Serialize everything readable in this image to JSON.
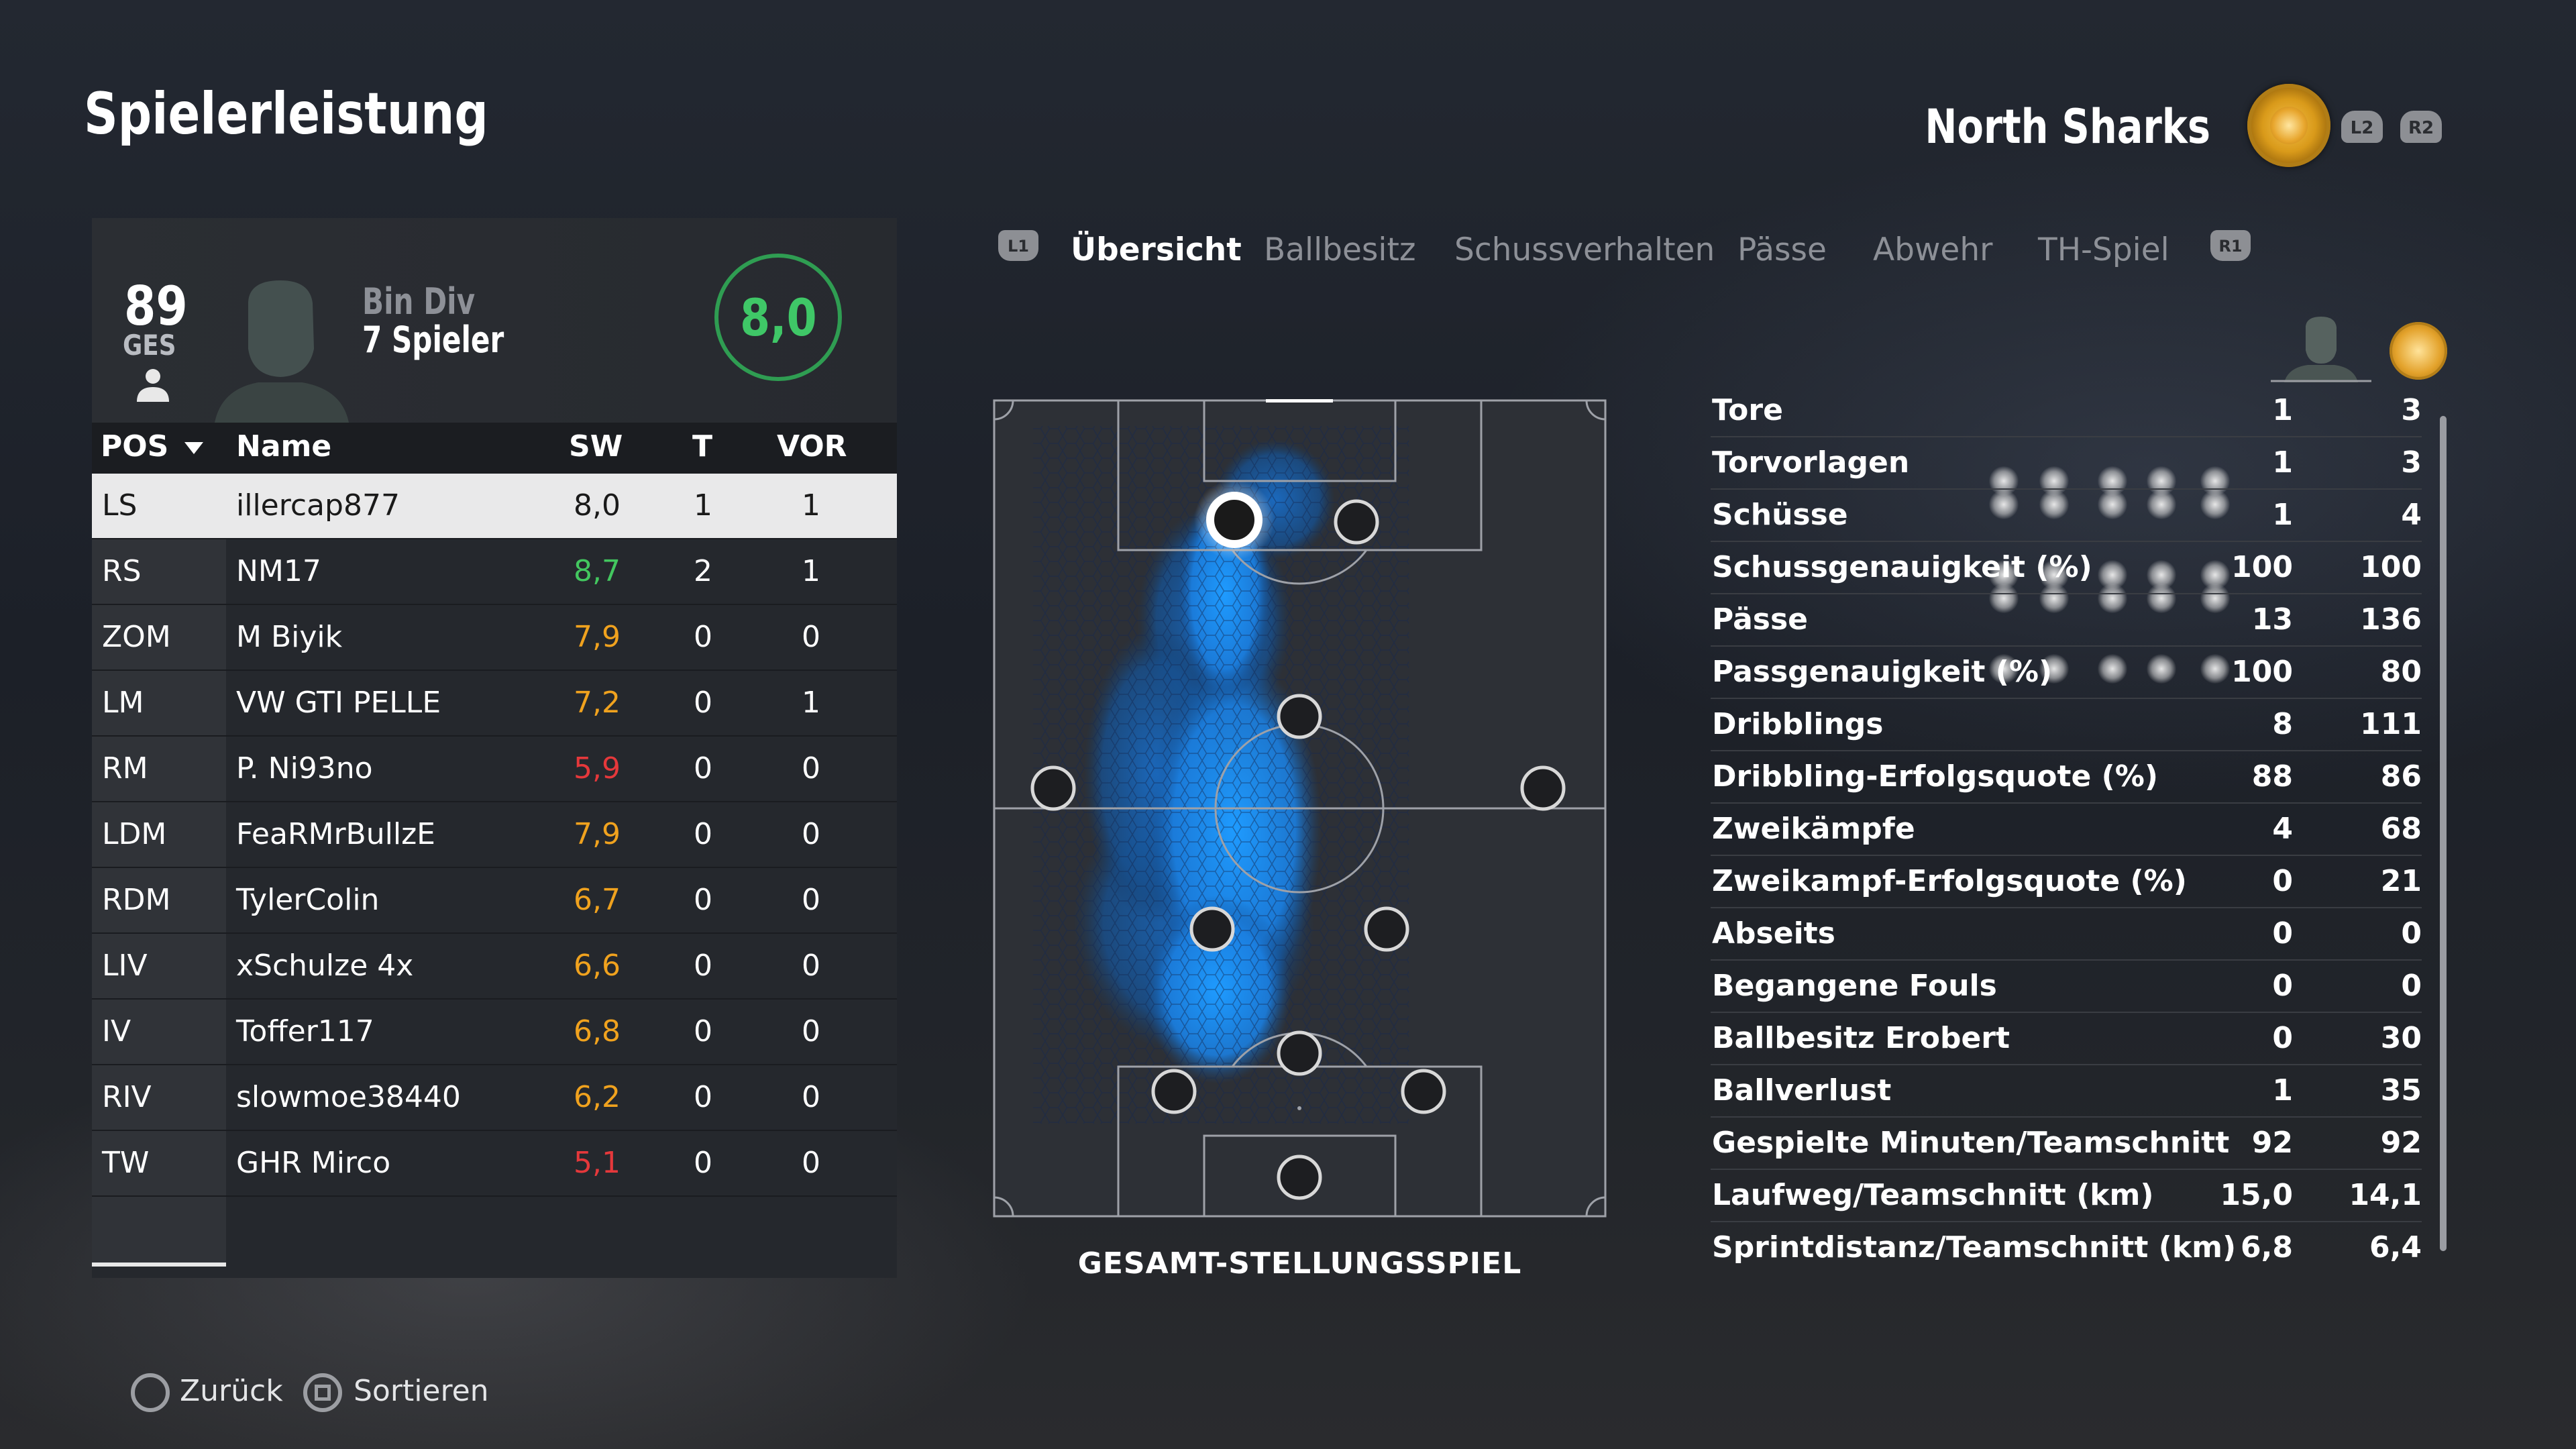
{
  "header": {
    "title": "Spielerleistung",
    "team_name": "North Sharks",
    "l2": "L2",
    "r2": "R2"
  },
  "summary": {
    "overall": "89",
    "overall_label": "GES",
    "line1": "Bin Div",
    "line2": "7 Spieler",
    "rating": "8,0"
  },
  "table": {
    "headers": [
      "POS",
      "Name",
      "SW",
      "T",
      "VOR"
    ],
    "rows": [
      {
        "pos": "LS",
        "name": "illercap877",
        "sw": "8,0",
        "t": "1",
        "vor": "1",
        "color": "#1a1a1a"
      },
      {
        "pos": "RS",
        "name": "NM17",
        "sw": "8,7",
        "t": "2",
        "vor": "1",
        "color": "#43c75f"
      },
      {
        "pos": "ZOM",
        "name": "M Biyik",
        "sw": "7,9",
        "t": "0",
        "vor": "0",
        "color": "#f0a21e"
      },
      {
        "pos": "LM",
        "name": "VW GTI PELLE",
        "sw": "7,2",
        "t": "0",
        "vor": "1",
        "color": "#f0a21e"
      },
      {
        "pos": "RM",
        "name": "P. Ni93no",
        "sw": "5,9",
        "t": "0",
        "vor": "0",
        "color": "#e5383b"
      },
      {
        "pos": "LDM",
        "name": "FeaRMrBullzE",
        "sw": "7,9",
        "t": "0",
        "vor": "0",
        "color": "#f0a21e"
      },
      {
        "pos": "RDM",
        "name": "TylerColin",
        "sw": "6,7",
        "t": "0",
        "vor": "0",
        "color": "#f0a21e"
      },
      {
        "pos": "LIV",
        "name": "xSchulze 4x",
        "sw": "6,6",
        "t": "0",
        "vor": "0",
        "color": "#f0a21e"
      },
      {
        "pos": "IV",
        "name": "Toffer117",
        "sw": "6,8",
        "t": "0",
        "vor": "0",
        "color": "#f0a21e"
      },
      {
        "pos": "RIV",
        "name": "slowmoe38440",
        "sw": "6,2",
        "t": "0",
        "vor": "0",
        "color": "#f0a21e"
      },
      {
        "pos": "TW",
        "name": "GHR Mirco",
        "sw": "5,1",
        "t": "0",
        "vor": "0",
        "color": "#e5383b"
      }
    ]
  },
  "tabs": {
    "l1": "L1",
    "r1": "R1",
    "items": [
      "Übersicht",
      "Ballbesitz",
      "Schussverhalten",
      "Pässe",
      "Abwehr",
      "TH-Spiel"
    ]
  },
  "pitch": {
    "caption": "GESAMT-STELLUNGSSPIEL"
  },
  "stats": [
    {
      "label": "Tore",
      "player": "1",
      "team": "3"
    },
    {
      "label": "Torvorlagen",
      "player": "1",
      "team": "3"
    },
    {
      "label": "Schüsse",
      "player": "1",
      "team": "4"
    },
    {
      "label": "Schussgenauigkeit (%)",
      "player": "100",
      "team": "100"
    },
    {
      "label": "Pässe",
      "player": "13",
      "team": "136"
    },
    {
      "label": "Passgenauigkeit (%)",
      "player": "100",
      "team": "80"
    },
    {
      "label": "Dribblings",
      "player": "8",
      "team": "111"
    },
    {
      "label": "Dribbling-Erfolgsquote (%)",
      "player": "88",
      "team": "86"
    },
    {
      "label": "Zweikämpfe",
      "player": "4",
      "team": "68"
    },
    {
      "label": "Zweikampf-Erfolgsquote (%)",
      "player": "0",
      "team": "21"
    },
    {
      "label": "Abseits",
      "player": "0",
      "team": "0"
    },
    {
      "label": "Begangene Fouls",
      "player": "0",
      "team": "0"
    },
    {
      "label": "Ballbesitz Erobert",
      "player": "0",
      "team": "30"
    },
    {
      "label": "Ballverlust",
      "player": "1",
      "team": "35"
    },
    {
      "label": "Gespielte Minuten/Teamschnitt",
      "player": "92",
      "team": "92"
    },
    {
      "label": "Laufweg/Teamschnitt (km)",
      "player": "15,0",
      "team": "14,1"
    },
    {
      "label": "Sprintdistanz/Teamschnitt (km)",
      "player": "6,8",
      "team": "6,4"
    }
  ],
  "controls": {
    "back": "Zurück",
    "sort": "Sortieren"
  },
  "colors": {
    "accent_green": "#3fc767",
    "heat_blue": "#1e9bff"
  }
}
